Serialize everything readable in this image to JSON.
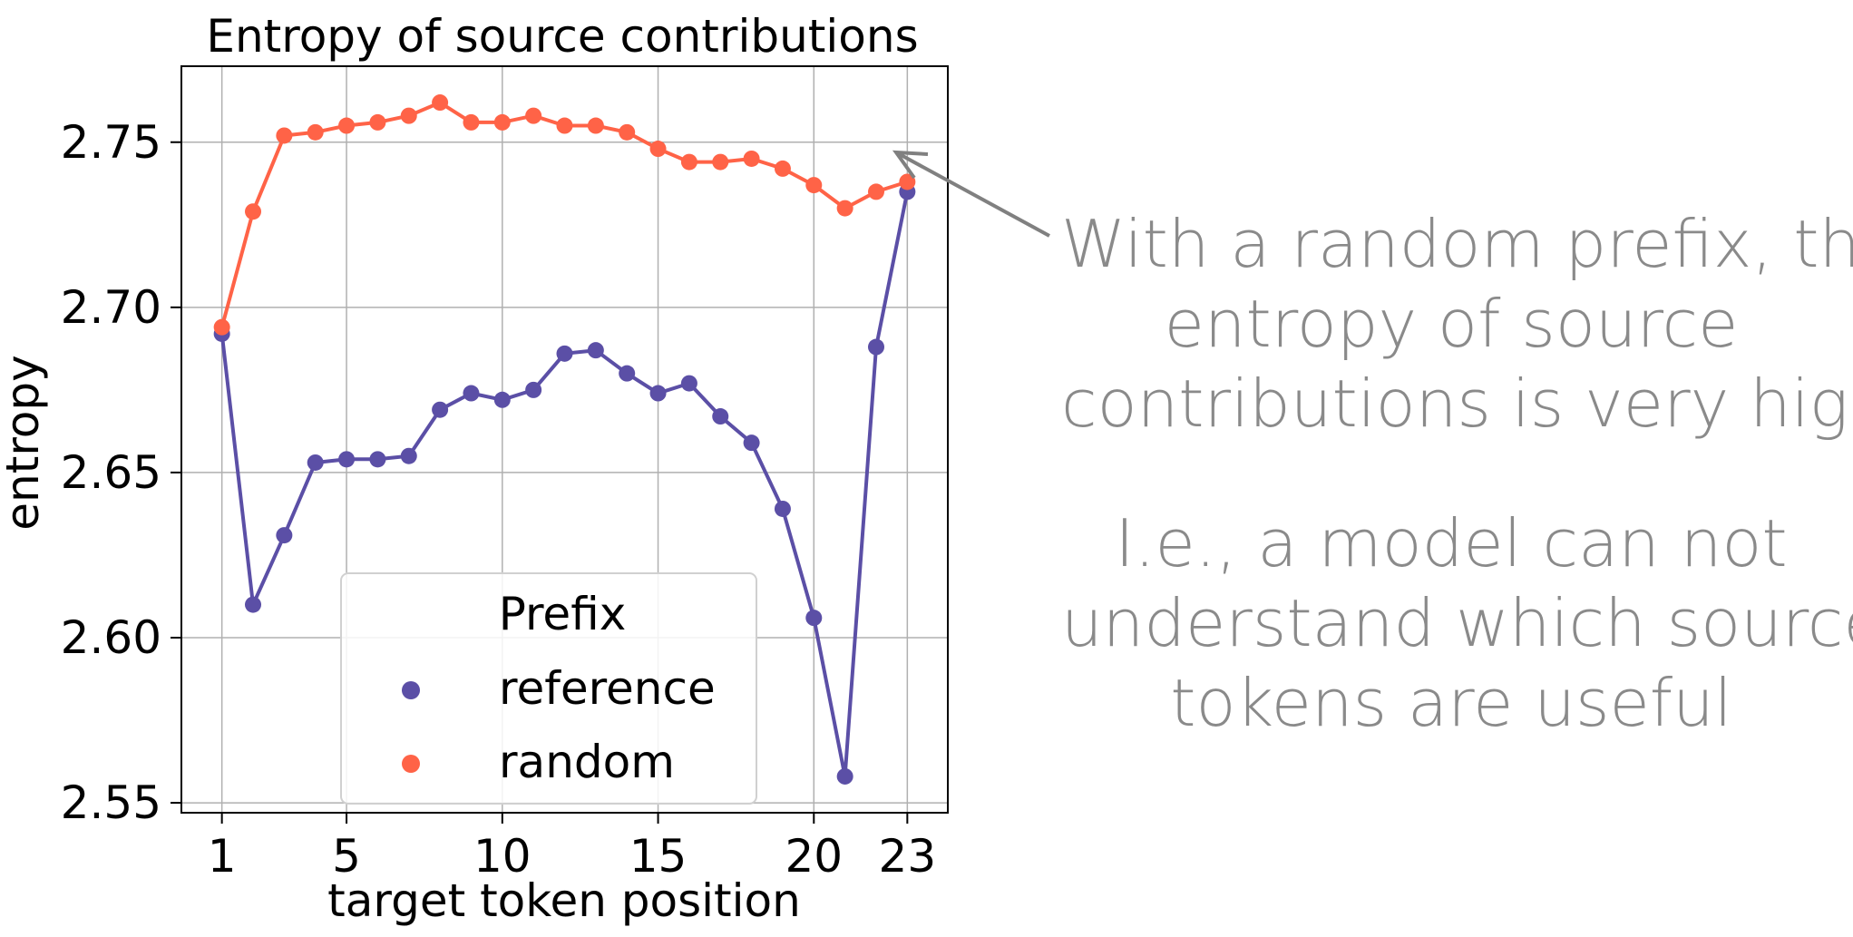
{
  "chart_data": {
    "type": "line",
    "title": "Entropy of source contributions",
    "xlabel": "target token position",
    "ylabel": "entropy",
    "x": [
      1,
      2,
      3,
      4,
      5,
      6,
      7,
      8,
      9,
      10,
      11,
      12,
      13,
      14,
      15,
      16,
      17,
      18,
      19,
      20,
      21,
      22,
      23
    ],
    "xticks": [
      "1",
      "5",
      "10",
      "15",
      "20",
      "23"
    ],
    "xtick_values": [
      1,
      5,
      10,
      15,
      20,
      23
    ],
    "yticks": [
      "2.55",
      "2.60",
      "2.65",
      "2.70",
      "2.75"
    ],
    "ytick_values": [
      2.55,
      2.6,
      2.65,
      2.7,
      2.75
    ],
    "xlim": [
      -0.3,
      24.3
    ],
    "ylim": [
      2.547,
      2.773
    ],
    "grid": true,
    "legend": {
      "title": "Prefix",
      "placement": "lower-center"
    },
    "series": [
      {
        "name": "reference",
        "color": "#5b4fa6",
        "values": [
          2.692,
          2.61,
          2.631,
          2.653,
          2.654,
          2.654,
          2.655,
          2.669,
          2.674,
          2.672,
          2.675,
          2.686,
          2.687,
          2.68,
          2.674,
          2.677,
          2.667,
          2.659,
          2.639,
          2.606,
          2.558,
          2.688,
          2.735
        ]
      },
      {
        "name": "random",
        "color": "#ff6347",
        "values": [
          2.694,
          2.729,
          2.752,
          2.753,
          2.755,
          2.756,
          2.758,
          2.762,
          2.756,
          2.756,
          2.758,
          2.755,
          2.755,
          2.753,
          2.748,
          2.744,
          2.744,
          2.745,
          2.742,
          2.737,
          2.73,
          2.735,
          2.738
        ]
      }
    ]
  },
  "annotation": {
    "main_lines": [
      "With a random prefix, the",
      "entropy of source",
      "contributions is very high"
    ],
    "sub_lines": [
      "I.e., a model can not",
      "understand which source",
      "tokens are useful"
    ],
    "text_color": "#8a8a8a",
    "arrow_color": "#808080"
  }
}
